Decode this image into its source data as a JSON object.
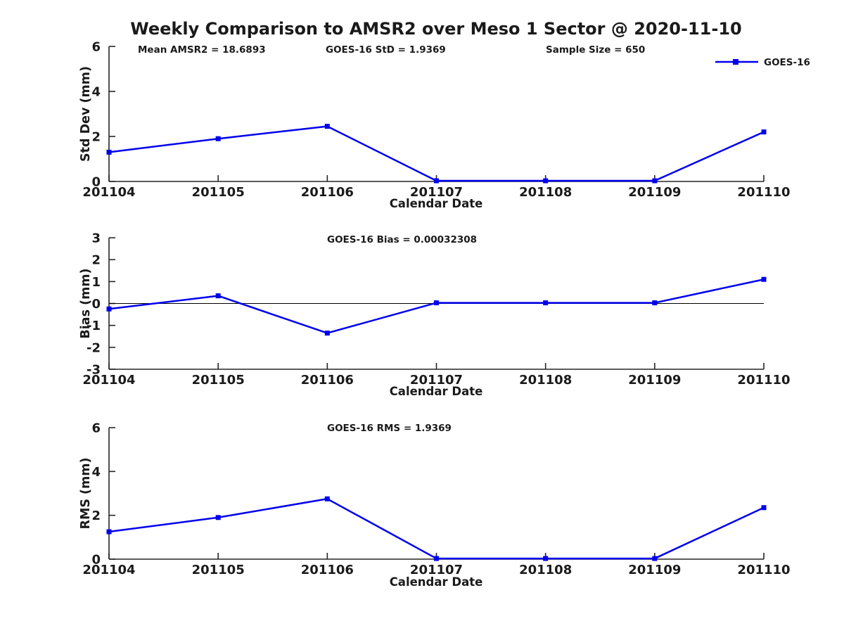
{
  "figure": {
    "title": "Weekly Comparison to AMSR2 over Meso 1 Sector @ 2020-11-10",
    "background": "#ffffff",
    "line_color": "#0000EE",
    "text_color": "#1a1a1a",
    "axis_color": "#262626"
  },
  "legend": {
    "label": "GOES-16",
    "position": "top-right"
  },
  "chart_data": [
    {
      "type": "line",
      "categories": [
        "201104",
        "201105",
        "201106",
        "201107",
        "201108",
        "201109",
        "201110"
      ],
      "series": [
        {
          "name": "GOES-16",
          "values": [
            1.3,
            1.9,
            2.45,
            0.03,
            0.03,
            0.03,
            2.2
          ]
        }
      ],
      "xlabel": "Calendar Date",
      "ylabel": "Std Dev (mm)",
      "ylim": [
        0,
        6
      ],
      "yticks": [
        0,
        2,
        4,
        6
      ],
      "annotations": [
        "Mean AMSR2 = 18.6893",
        "GOES-16 StD = 1.9369",
        "Sample Size = 650"
      ],
      "legend_entries": [
        "GOES-16"
      ],
      "grid": "off",
      "marker": "square",
      "zero_line": false
    },
    {
      "type": "line",
      "categories": [
        "201104",
        "201105",
        "201106",
        "201107",
        "201108",
        "201109",
        "201110"
      ],
      "series": [
        {
          "name": "GOES-16",
          "values": [
            -0.25,
            0.35,
            -1.35,
            0.03,
            0.03,
            0.03,
            1.1
          ]
        }
      ],
      "xlabel": "Calendar Date",
      "ylabel": "Bias (mm)",
      "ylim": [
        -3,
        3
      ],
      "yticks": [
        -3,
        -2,
        -1,
        0,
        1,
        2,
        3
      ],
      "annotations": [
        "GOES-16 Bias  = 0.00032308"
      ],
      "grid": "off",
      "marker": "square",
      "zero_line": true
    },
    {
      "type": "line",
      "categories": [
        "201104",
        "201105",
        "201106",
        "201107",
        "201108",
        "201109",
        "201110"
      ],
      "series": [
        {
          "name": "GOES-16",
          "values": [
            1.25,
            1.9,
            2.75,
            0.03,
            0.03,
            0.03,
            2.35
          ]
        }
      ],
      "xlabel": "Calendar Date",
      "ylabel": "RMS (mm)",
      "ylim": [
        0,
        6
      ],
      "yticks": [
        0,
        2,
        4,
        6
      ],
      "annotations": [
        "GOES-16 RMS = 1.9369"
      ],
      "grid": "off",
      "marker": "square",
      "zero_line": false
    }
  ]
}
